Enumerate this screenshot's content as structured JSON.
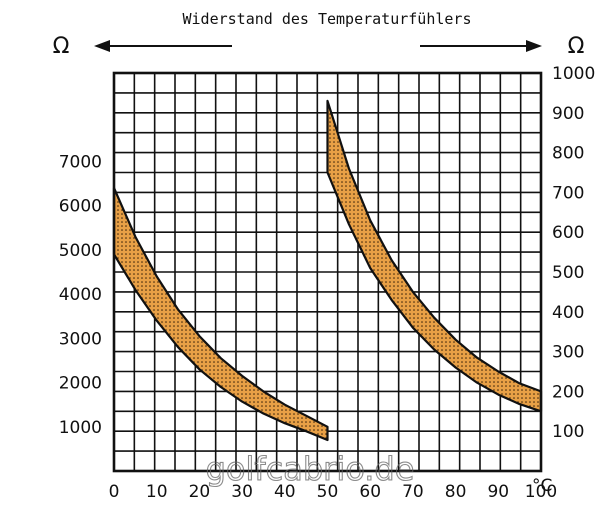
{
  "chart_data": {
    "type": "area",
    "title": "Widerstand des Temperaturfühlers",
    "xlabel": "°C",
    "left_unit": "Ω",
    "right_unit": "Ω",
    "xlim": [
      0,
      100
    ],
    "x_ticks": [
      "0",
      "10",
      "20",
      "30",
      "40",
      "50",
      "60",
      "70",
      "80",
      "90",
      "100"
    ],
    "left_axis": {
      "ylim": [
        0,
        9000
      ],
      "ticks": [
        "1000",
        "2000",
        "3000",
        "4000",
        "5000",
        "6000",
        "7000"
      ]
    },
    "right_axis": {
      "ylim": [
        0,
        1000
      ],
      "ticks": [
        "100",
        "200",
        "300",
        "400",
        "500",
        "600",
        "700",
        "800",
        "900",
        "1000"
      ]
    },
    "grid": true,
    "band_color": "#e8a046",
    "series": [
      {
        "axis": "left",
        "x": [
          0,
          5,
          10,
          15,
          20,
          25,
          30,
          35,
          40,
          45,
          50
        ],
        "upper": [
          6400,
          5300,
          4400,
          3650,
          3050,
          2550,
          2150,
          1800,
          1500,
          1250,
          1000
        ],
        "lower": [
          4900,
          4100,
          3400,
          2800,
          2300,
          1900,
          1570,
          1300,
          1080,
          900,
          700
        ]
      },
      {
        "axis": "right",
        "x": [
          50,
          55,
          60,
          65,
          70,
          75,
          80,
          85,
          90,
          95,
          100
        ],
        "upper": [
          930,
          760,
          630,
          530,
          450,
          385,
          330,
          285,
          250,
          220,
          200
        ],
        "lower": [
          750,
          620,
          510,
          430,
          360,
          305,
          260,
          222,
          192,
          168,
          150
        ]
      }
    ],
    "watermark": "golfcabrio.de"
  }
}
